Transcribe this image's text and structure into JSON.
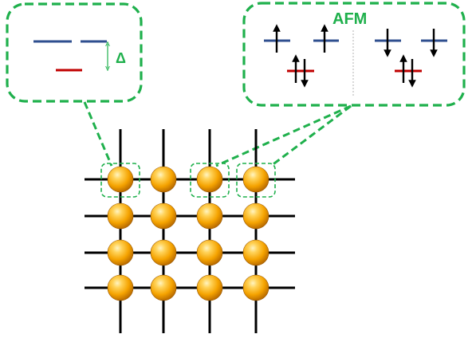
{
  "left_callout": {
    "gap_symbol": "Δ"
  },
  "right_callout": {
    "title": "AFM"
  },
  "colors": {
    "callout_dashed": "#1fb04c",
    "upper_level": "#2f4f8f",
    "lower_level": "#c00000",
    "spin_arrow": "#000000",
    "lattice_line": "#000000",
    "atom_light": "#ffd35a",
    "atom_mid": "#f5a300",
    "atom_dark": "#b86a00",
    "divider": "#a0a0a0"
  },
  "lattice": {
    "rows": 4,
    "columns": 4,
    "highlighted_atoms": [
      "row1-col1",
      "row1-col3",
      "row1-col4"
    ]
  }
}
